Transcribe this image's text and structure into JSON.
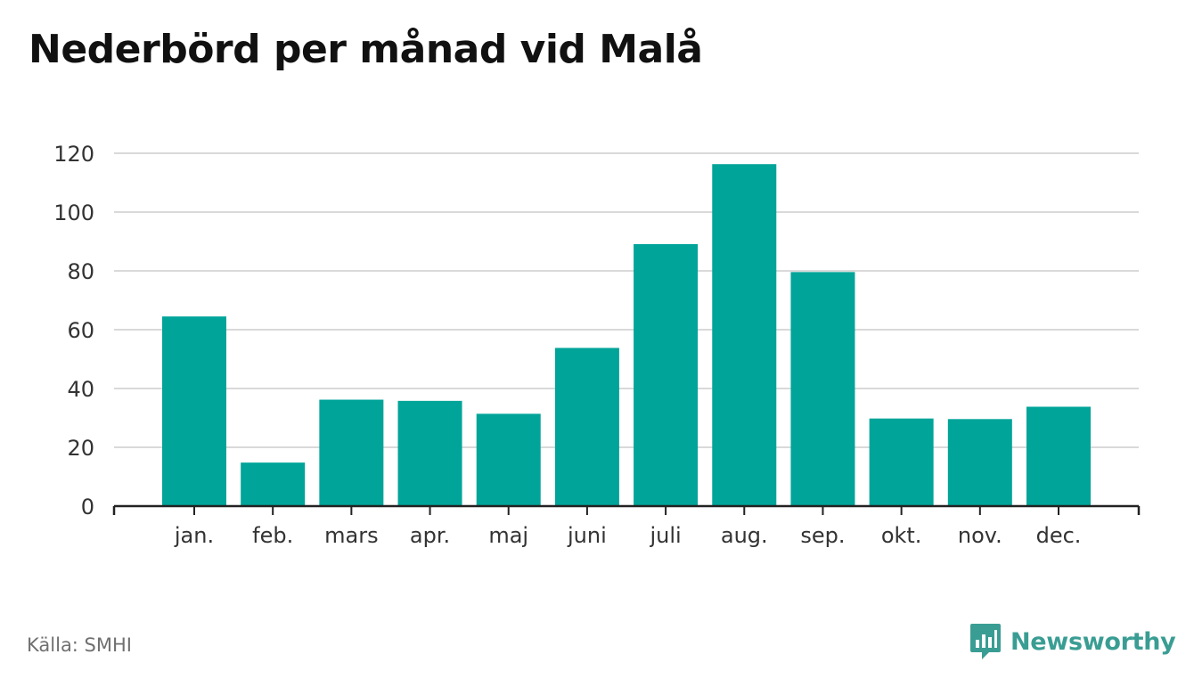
{
  "title": "Nederbörd per månad vid Malå",
  "source": "Källa: SMHI",
  "brand": {
    "name": "Newsworthy",
    "icon": "bar-chart-speech-bubble-icon",
    "color": "#3a9d93"
  },
  "colors": {
    "bar": "#00a499",
    "grid": "#d9d9d9",
    "axis": "#222222",
    "tick_text": "#333333"
  },
  "chart_data": {
    "type": "bar",
    "title": "Nederbörd per månad vid Malå",
    "categories": [
      "jan.",
      "feb.",
      "mars",
      "apr.",
      "maj",
      "juni",
      "juli",
      "aug.",
      "sep.",
      "okt.",
      "nov.",
      "dec."
    ],
    "values": [
      64.5,
      14.8,
      36.2,
      35.8,
      31.4,
      53.8,
      89.1,
      116.3,
      79.6,
      29.8,
      29.6,
      33.8
    ],
    "yticks": [
      0,
      20,
      40,
      60,
      80,
      100,
      120
    ],
    "ylim": [
      0,
      120
    ],
    "xlabel": "",
    "ylabel": "",
    "grid": true,
    "legend": "none"
  }
}
